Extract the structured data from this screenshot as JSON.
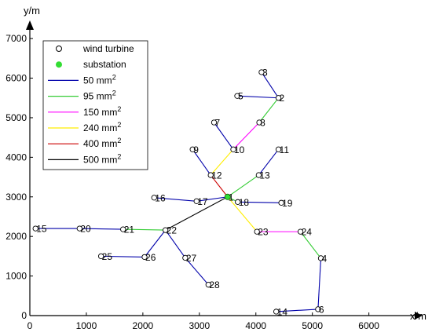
{
  "chart_data": {
    "type": "network",
    "xlabel": "x/m",
    "ylabel": "y/m",
    "xlim": [
      0,
      6700
    ],
    "ylim": [
      0,
      7300
    ],
    "xticks": [
      0,
      1000,
      2000,
      3000,
      4000,
      5000,
      6000
    ],
    "yticks": [
      0,
      1000,
      2000,
      3000,
      4000,
      5000,
      6000,
      7000
    ],
    "grid": false,
    "legend_position": "top-left",
    "legend": [
      {
        "label": "wind turbine",
        "marker": "open-circle"
      },
      {
        "label": "substation",
        "marker": "filled-circle",
        "color": "#33dd33"
      },
      {
        "label": "50 mm",
        "sup": "2",
        "color": "#0000aa"
      },
      {
        "label": "95 mm",
        "sup": "2",
        "color": "#33cc33"
      },
      {
        "label": "150 mm",
        "sup": "2",
        "color": "#ff00ff"
      },
      {
        "label": "240 mm",
        "sup": "2",
        "color": "#ffee00"
      },
      {
        "label": "400 mm",
        "sup": "2",
        "color": "#cc0000"
      },
      {
        "label": "500 mm",
        "sup": "2",
        "color": "#000000"
      }
    ],
    "substation": {
      "label": "1",
      "x": 3500,
      "y": 3000
    },
    "turbines": [
      {
        "id": "2",
        "x": 4400,
        "y": 5500
      },
      {
        "id": "3",
        "x": 4100,
        "y": 6150
      },
      {
        "id": "4",
        "x": 5150,
        "y": 1450
      },
      {
        "id": "5",
        "x": 3670,
        "y": 5550
      },
      {
        "id": "6",
        "x": 5100,
        "y": 160
      },
      {
        "id": "7",
        "x": 3260,
        "y": 4880
      },
      {
        "id": "8",
        "x": 4060,
        "y": 4880
      },
      {
        "id": "9",
        "x": 2880,
        "y": 4200
      },
      {
        "id": "10",
        "x": 3600,
        "y": 4200
      },
      {
        "id": "11",
        "x": 4400,
        "y": 4200
      },
      {
        "id": "12",
        "x": 3200,
        "y": 3550
      },
      {
        "id": "13",
        "x": 4050,
        "y": 3550
      },
      {
        "id": "14",
        "x": 4360,
        "y": 100
      },
      {
        "id": "15",
        "x": 100,
        "y": 2200
      },
      {
        "id": "16",
        "x": 2200,
        "y": 2980
      },
      {
        "id": "17",
        "x": 2950,
        "y": 2890
      },
      {
        "id": "18",
        "x": 3680,
        "y": 2870
      },
      {
        "id": "19",
        "x": 4450,
        "y": 2850
      },
      {
        "id": "20",
        "x": 880,
        "y": 2200
      },
      {
        "id": "21",
        "x": 1650,
        "y": 2180
      },
      {
        "id": "22",
        "x": 2400,
        "y": 2160
      },
      {
        "id": "23",
        "x": 4020,
        "y": 2120
      },
      {
        "id": "24",
        "x": 4790,
        "y": 2120
      },
      {
        "id": "25",
        "x": 1260,
        "y": 1500
      },
      {
        "id": "26",
        "x": 2030,
        "y": 1480
      },
      {
        "id": "27",
        "x": 2750,
        "y": 1460
      },
      {
        "id": "28",
        "x": 3160,
        "y": 780
      }
    ],
    "cables": [
      {
        "from": "3",
        "to": "2",
        "cable": "50 mm"
      },
      {
        "from": "5",
        "to": "2",
        "cable": "50 mm"
      },
      {
        "from": "2",
        "to": "8",
        "cable": "95 mm"
      },
      {
        "from": "8",
        "to": "10",
        "cable": "150 mm"
      },
      {
        "from": "7",
        "to": "10",
        "cable": "50 mm"
      },
      {
        "from": "10",
        "to": "12",
        "cable": "240 mm"
      },
      {
        "from": "9",
        "to": "12",
        "cable": "50 mm"
      },
      {
        "from": "12",
        "to": "1",
        "cable": "400 mm"
      },
      {
        "from": "11",
        "to": "13",
        "cable": "50 mm"
      },
      {
        "from": "13",
        "to": "1",
        "cable": "95 mm"
      },
      {
        "from": "16",
        "to": "17",
        "cable": "50 mm"
      },
      {
        "from": "17",
        "to": "1",
        "cable": "50 mm"
      },
      {
        "from": "19",
        "to": "18",
        "cable": "50 mm"
      },
      {
        "from": "18",
        "to": "1",
        "cable": "95 mm"
      },
      {
        "from": "6",
        "to": "14",
        "cable": "50 mm"
      },
      {
        "from": "6",
        "to": "4",
        "cable": "50 mm"
      },
      {
        "from": "4",
        "to": "24",
        "cable": "95 mm"
      },
      {
        "from": "24",
        "to": "23",
        "cable": "150 mm"
      },
      {
        "from": "23",
        "to": "1",
        "cable": "240 mm"
      },
      {
        "from": "15",
        "to": "20",
        "cable": "50 mm"
      },
      {
        "from": "20",
        "to": "21",
        "cable": "50 mm"
      },
      {
        "from": "21",
        "to": "22",
        "cable": "95 mm"
      },
      {
        "from": "25",
        "to": "26",
        "cable": "50 mm"
      },
      {
        "from": "26",
        "to": "22",
        "cable": "50 mm"
      },
      {
        "from": "28",
        "to": "27",
        "cable": "50 mm"
      },
      {
        "from": "27",
        "to": "22",
        "cable": "50 mm"
      },
      {
        "from": "22",
        "to": "1",
        "cable": "500 mm"
      }
    ]
  }
}
